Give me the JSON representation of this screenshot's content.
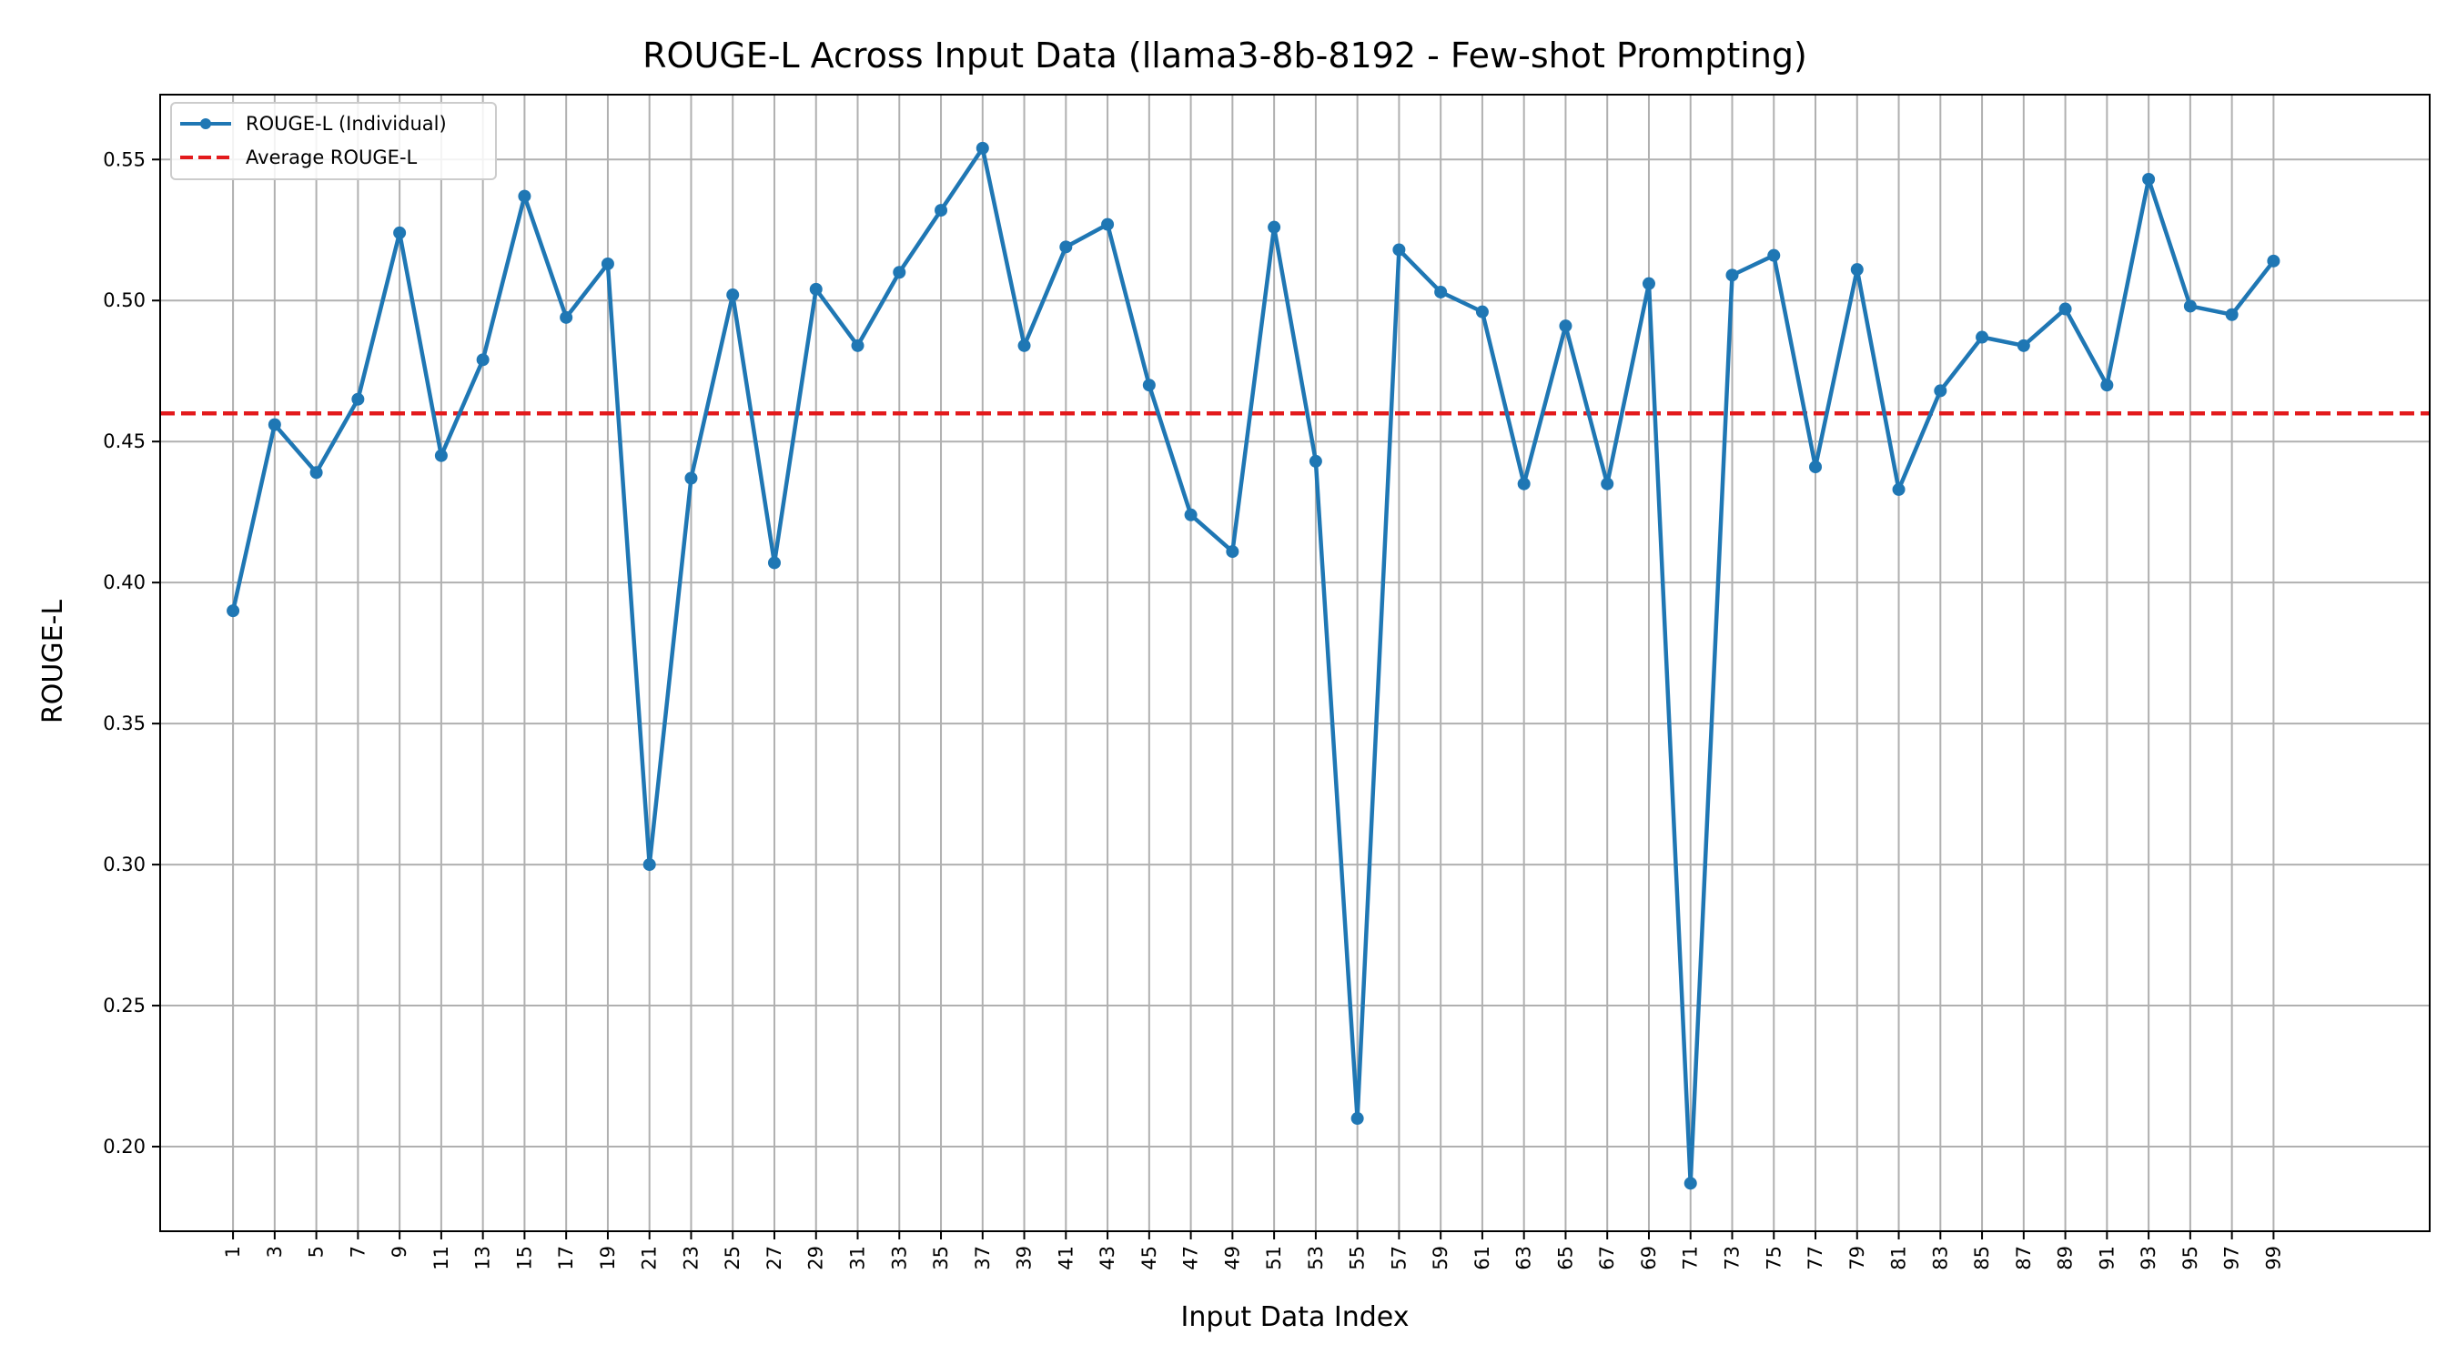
{
  "chart_data": {
    "type": "line",
    "title": "ROUGE-L Across Input Data (llama3-8b-8192 - Few-shot Prompting)",
    "xlabel": "Input Data Index",
    "ylabel": "ROUGE-L",
    "ylim": [
      0.17,
      0.573
    ],
    "xlim": [
      -2.5,
      106.5
    ],
    "grid": true,
    "legend_position": "upper-left",
    "x_ticks": [
      1,
      3,
      5,
      7,
      9,
      11,
      13,
      15,
      17,
      19,
      21,
      23,
      25,
      27,
      29,
      31,
      33,
      35,
      37,
      39,
      41,
      43,
      45,
      47,
      49,
      51,
      53,
      55,
      57,
      59,
      61,
      63,
      65,
      67,
      69,
      71,
      73,
      75,
      77,
      79,
      81,
      83,
      85,
      87,
      89,
      91,
      93,
      95,
      97,
      99
    ],
    "y_ticks": [
      0.2,
      0.25,
      0.3,
      0.35,
      0.4,
      0.45,
      0.5,
      0.55
    ],
    "y_tick_labels": [
      "0.20",
      "0.25",
      "0.30",
      "0.35",
      "0.40",
      "0.45",
      "0.50",
      "0.55"
    ],
    "x": [
      1,
      3,
      5,
      7,
      9,
      11,
      13,
      15,
      17,
      19,
      21,
      23,
      25,
      27,
      29,
      31,
      33,
      35,
      37,
      39,
      41,
      43,
      45,
      47,
      49,
      51,
      53,
      55,
      57,
      59,
      61,
      63,
      65,
      67,
      69,
      71,
      73,
      75,
      77,
      79,
      81,
      83,
      85,
      87,
      89,
      91,
      93,
      95,
      97,
      99
    ],
    "series": [
      {
        "name": "ROUGE-L (Individual)",
        "color": "#1f77b4",
        "style": "solid-with-markers",
        "values": [
          0.39,
          0.456,
          0.439,
          0.465,
          0.524,
          0.445,
          0.479,
          0.537,
          0.494,
          0.513,
          0.3,
          0.437,
          0.502,
          0.407,
          0.504,
          0.484,
          0.51,
          0.532,
          0.554,
          0.484,
          0.519,
          0.527,
          0.47,
          0.424,
          0.411,
          0.526,
          0.443,
          0.21,
          0.518,
          0.503,
          0.496,
          0.435,
          0.491,
          0.435,
          0.506,
          0.187,
          0.509,
          0.516,
          0.441,
          0.511,
          0.433,
          0.468,
          0.487,
          0.484,
          0.497,
          0.47,
          0.543,
          0.498,
          0.495,
          0.514
        ]
      }
    ],
    "reference_lines": [
      {
        "name": "Average ROUGE-L",
        "color": "#e31a1c",
        "style": "dashed",
        "y": 0.46
      }
    ]
  }
}
